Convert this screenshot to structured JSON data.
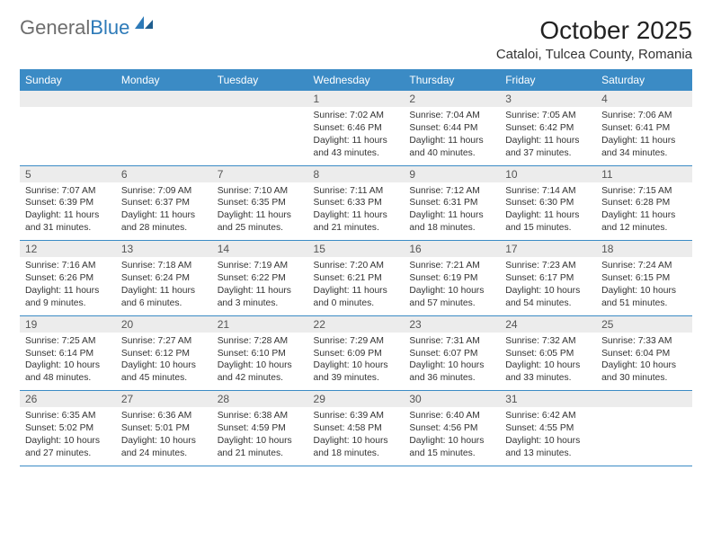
{
  "logo": {
    "text_gray": "General",
    "text_blue": "Blue"
  },
  "title": "October 2025",
  "location": "Cataloi, Tulcea County, Romania",
  "colors": {
    "header_bg": "#3b8bc5",
    "header_text": "#ffffff",
    "daynum_bg": "#ececec",
    "daynum_text": "#555555",
    "body_text": "#333333",
    "logo_gray": "#6d6d6d",
    "logo_blue": "#2d7ab8",
    "row_border": "#3b8bc5"
  },
  "day_names": [
    "Sunday",
    "Monday",
    "Tuesday",
    "Wednesday",
    "Thursday",
    "Friday",
    "Saturday"
  ],
  "weeks": [
    [
      {
        "empty": true
      },
      {
        "empty": true
      },
      {
        "empty": true
      },
      {
        "num": "1",
        "sunrise": "7:02 AM",
        "sunset": "6:46 PM",
        "daylight": "11 hours and 43 minutes."
      },
      {
        "num": "2",
        "sunrise": "7:04 AM",
        "sunset": "6:44 PM",
        "daylight": "11 hours and 40 minutes."
      },
      {
        "num": "3",
        "sunrise": "7:05 AM",
        "sunset": "6:42 PM",
        "daylight": "11 hours and 37 minutes."
      },
      {
        "num": "4",
        "sunrise": "7:06 AM",
        "sunset": "6:41 PM",
        "daylight": "11 hours and 34 minutes."
      }
    ],
    [
      {
        "num": "5",
        "sunrise": "7:07 AM",
        "sunset": "6:39 PM",
        "daylight": "11 hours and 31 minutes."
      },
      {
        "num": "6",
        "sunrise": "7:09 AM",
        "sunset": "6:37 PM",
        "daylight": "11 hours and 28 minutes."
      },
      {
        "num": "7",
        "sunrise": "7:10 AM",
        "sunset": "6:35 PM",
        "daylight": "11 hours and 25 minutes."
      },
      {
        "num": "8",
        "sunrise": "7:11 AM",
        "sunset": "6:33 PM",
        "daylight": "11 hours and 21 minutes."
      },
      {
        "num": "9",
        "sunrise": "7:12 AM",
        "sunset": "6:31 PM",
        "daylight": "11 hours and 18 minutes."
      },
      {
        "num": "10",
        "sunrise": "7:14 AM",
        "sunset": "6:30 PM",
        "daylight": "11 hours and 15 minutes."
      },
      {
        "num": "11",
        "sunrise": "7:15 AM",
        "sunset": "6:28 PM",
        "daylight": "11 hours and 12 minutes."
      }
    ],
    [
      {
        "num": "12",
        "sunrise": "7:16 AM",
        "sunset": "6:26 PM",
        "daylight": "11 hours and 9 minutes."
      },
      {
        "num": "13",
        "sunrise": "7:18 AM",
        "sunset": "6:24 PM",
        "daylight": "11 hours and 6 minutes."
      },
      {
        "num": "14",
        "sunrise": "7:19 AM",
        "sunset": "6:22 PM",
        "daylight": "11 hours and 3 minutes."
      },
      {
        "num": "15",
        "sunrise": "7:20 AM",
        "sunset": "6:21 PM",
        "daylight": "11 hours and 0 minutes."
      },
      {
        "num": "16",
        "sunrise": "7:21 AM",
        "sunset": "6:19 PM",
        "daylight": "10 hours and 57 minutes."
      },
      {
        "num": "17",
        "sunrise": "7:23 AM",
        "sunset": "6:17 PM",
        "daylight": "10 hours and 54 minutes."
      },
      {
        "num": "18",
        "sunrise": "7:24 AM",
        "sunset": "6:15 PM",
        "daylight": "10 hours and 51 minutes."
      }
    ],
    [
      {
        "num": "19",
        "sunrise": "7:25 AM",
        "sunset": "6:14 PM",
        "daylight": "10 hours and 48 minutes."
      },
      {
        "num": "20",
        "sunrise": "7:27 AM",
        "sunset": "6:12 PM",
        "daylight": "10 hours and 45 minutes."
      },
      {
        "num": "21",
        "sunrise": "7:28 AM",
        "sunset": "6:10 PM",
        "daylight": "10 hours and 42 minutes."
      },
      {
        "num": "22",
        "sunrise": "7:29 AM",
        "sunset": "6:09 PM",
        "daylight": "10 hours and 39 minutes."
      },
      {
        "num": "23",
        "sunrise": "7:31 AM",
        "sunset": "6:07 PM",
        "daylight": "10 hours and 36 minutes."
      },
      {
        "num": "24",
        "sunrise": "7:32 AM",
        "sunset": "6:05 PM",
        "daylight": "10 hours and 33 minutes."
      },
      {
        "num": "25",
        "sunrise": "7:33 AM",
        "sunset": "6:04 PM",
        "daylight": "10 hours and 30 minutes."
      }
    ],
    [
      {
        "num": "26",
        "sunrise": "6:35 AM",
        "sunset": "5:02 PM",
        "daylight": "10 hours and 27 minutes."
      },
      {
        "num": "27",
        "sunrise": "6:36 AM",
        "sunset": "5:01 PM",
        "daylight": "10 hours and 24 minutes."
      },
      {
        "num": "28",
        "sunrise": "6:38 AM",
        "sunset": "4:59 PM",
        "daylight": "10 hours and 21 minutes."
      },
      {
        "num": "29",
        "sunrise": "6:39 AM",
        "sunset": "4:58 PM",
        "daylight": "10 hours and 18 minutes."
      },
      {
        "num": "30",
        "sunrise": "6:40 AM",
        "sunset": "4:56 PM",
        "daylight": "10 hours and 15 minutes."
      },
      {
        "num": "31",
        "sunrise": "6:42 AM",
        "sunset": "4:55 PM",
        "daylight": "10 hours and 13 minutes."
      },
      {
        "empty": true
      }
    ]
  ]
}
